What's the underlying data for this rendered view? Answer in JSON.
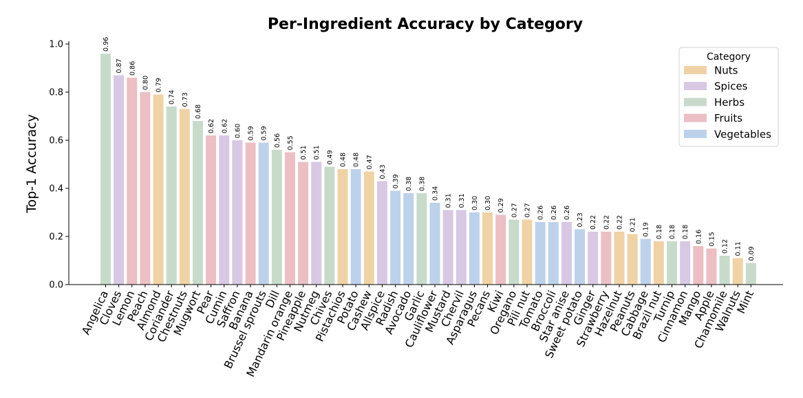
{
  "chart_data": {
    "type": "bar",
    "title": "Per-Ingredient Accuracy by Category",
    "xlabel": "",
    "ylabel": "Top-1 Accuracy",
    "ylim": [
      0,
      1.0
    ],
    "yticks": [
      "0.0",
      "0.2",
      "0.4",
      "0.6",
      "0.8",
      "1.0"
    ],
    "grid": false,
    "legend": {
      "title": "Category",
      "position": "top-right",
      "entries": [
        "Nuts",
        "Spices",
        "Herbs",
        "Fruits",
        "Vegetables"
      ]
    },
    "colors": {
      "Nuts": "#efd3a6",
      "Spices": "#d9c8e4",
      "Herbs": "#c8dbcb",
      "Fruits": "#ebbfc3",
      "Vegetables": "#bdd2ea"
    },
    "bars": [
      {
        "label": "Angelica",
        "value": 0.96,
        "value_label": "0.96",
        "category": "Herbs"
      },
      {
        "label": "Cloves",
        "value": 0.87,
        "value_label": "0.87",
        "category": "Spices"
      },
      {
        "label": "Lemon",
        "value": 0.86,
        "value_label": "0.86",
        "category": "Fruits"
      },
      {
        "label": "Peach",
        "value": 0.8,
        "value_label": "0.80",
        "category": "Fruits"
      },
      {
        "label": "Almond",
        "value": 0.79,
        "value_label": "0.79",
        "category": "Nuts"
      },
      {
        "label": "Coriander",
        "value": 0.74,
        "value_label": "0.74",
        "category": "Herbs"
      },
      {
        "label": "Chestnuts",
        "value": 0.73,
        "value_label": "0.73",
        "category": "Nuts"
      },
      {
        "label": "Mugwort",
        "value": 0.68,
        "value_label": "0.68",
        "category": "Herbs"
      },
      {
        "label": "Pear",
        "value": 0.62,
        "value_label": "0.62",
        "category": "Fruits"
      },
      {
        "label": "Cumin",
        "value": 0.62,
        "value_label": "0.62",
        "category": "Spices"
      },
      {
        "label": "Saffron",
        "value": 0.6,
        "value_label": "0.60",
        "category": "Spices"
      },
      {
        "label": "Banana",
        "value": 0.59,
        "value_label": "0.59",
        "category": "Fruits"
      },
      {
        "label": "Brussel sprouts",
        "value": 0.59,
        "value_label": "0.59",
        "category": "Vegetables"
      },
      {
        "label": "Dill",
        "value": 0.56,
        "value_label": "0.56",
        "category": "Herbs"
      },
      {
        "label": "Mandarin orange",
        "value": 0.55,
        "value_label": "0.55",
        "category": "Fruits"
      },
      {
        "label": "Pineapple",
        "value": 0.51,
        "value_label": "0.51",
        "category": "Fruits"
      },
      {
        "label": "Nutmeg",
        "value": 0.51,
        "value_label": "0.51",
        "category": "Spices"
      },
      {
        "label": "Chives",
        "value": 0.49,
        "value_label": "0.49",
        "category": "Herbs"
      },
      {
        "label": "Pistachios",
        "value": 0.48,
        "value_label": "0.48",
        "category": "Nuts"
      },
      {
        "label": "Potato",
        "value": 0.48,
        "value_label": "0.48",
        "category": "Vegetables"
      },
      {
        "label": "Cashew",
        "value": 0.47,
        "value_label": "0.47",
        "category": "Nuts"
      },
      {
        "label": "Allspice",
        "value": 0.43,
        "value_label": "0.43",
        "category": "Spices"
      },
      {
        "label": "Radish",
        "value": 0.39,
        "value_label": "0.39",
        "category": "Vegetables"
      },
      {
        "label": "Avocado",
        "value": 0.38,
        "value_label": "0.38",
        "category": "Vegetables"
      },
      {
        "label": "Garlic",
        "value": 0.38,
        "value_label": "0.38",
        "category": "Herbs"
      },
      {
        "label": "Cauliflower",
        "value": 0.34,
        "value_label": "0.34",
        "category": "Vegetables"
      },
      {
        "label": "Mustard",
        "value": 0.31,
        "value_label": "0.31",
        "category": "Spices"
      },
      {
        "label": "Chervil",
        "value": 0.31,
        "value_label": "0.31",
        "category": "Spices"
      },
      {
        "label": "Asparagus",
        "value": 0.3,
        "value_label": "0.30",
        "category": "Vegetables"
      },
      {
        "label": "Pecans",
        "value": 0.3,
        "value_label": "0.30",
        "category": "Nuts"
      },
      {
        "label": "Kiwi",
        "value": 0.29,
        "value_label": "0.29",
        "category": "Fruits"
      },
      {
        "label": "Oregano",
        "value": 0.27,
        "value_label": "0.27",
        "category": "Herbs"
      },
      {
        "label": "Pili nut",
        "value": 0.27,
        "value_label": "0.27",
        "category": "Nuts"
      },
      {
        "label": "Tomato",
        "value": 0.26,
        "value_label": "0.26",
        "category": "Vegetables"
      },
      {
        "label": "Broccoli",
        "value": 0.26,
        "value_label": "0.26",
        "category": "Vegetables"
      },
      {
        "label": "Star anise",
        "value": 0.26,
        "value_label": "0.26",
        "category": "Spices"
      },
      {
        "label": "Sweet potato",
        "value": 0.23,
        "value_label": "0.23",
        "category": "Vegetables"
      },
      {
        "label": "Ginger",
        "value": 0.22,
        "value_label": "0.22",
        "category": "Spices"
      },
      {
        "label": "Strawberry",
        "value": 0.22,
        "value_label": "0.22",
        "category": "Fruits"
      },
      {
        "label": "Hazelnut",
        "value": 0.22,
        "value_label": "0.22",
        "category": "Nuts"
      },
      {
        "label": "Peanuts",
        "value": 0.21,
        "value_label": "0.21",
        "category": "Nuts"
      },
      {
        "label": "Cabbage",
        "value": 0.19,
        "value_label": "0.19",
        "category": "Vegetables"
      },
      {
        "label": "Brazil nut",
        "value": 0.18,
        "value_label": "0.18",
        "category": "Nuts"
      },
      {
        "label": "Turnip",
        "value": 0.18,
        "value_label": "0.18",
        "category": "Herbs"
      },
      {
        "label": "Cinnamon",
        "value": 0.18,
        "value_label": "0.18",
        "category": "Spices"
      },
      {
        "label": "Mango",
        "value": 0.16,
        "value_label": "0.16",
        "category": "Fruits"
      },
      {
        "label": "Apple",
        "value": 0.15,
        "value_label": "0.15",
        "category": "Fruits"
      },
      {
        "label": "Chamomile",
        "value": 0.12,
        "value_label": "0.12",
        "category": "Herbs"
      },
      {
        "label": "Walnuts",
        "value": 0.11,
        "value_label": "0.11",
        "category": "Nuts"
      },
      {
        "label": "Mint",
        "value": 0.09,
        "value_label": "0.09",
        "category": "Herbs"
      }
    ]
  }
}
